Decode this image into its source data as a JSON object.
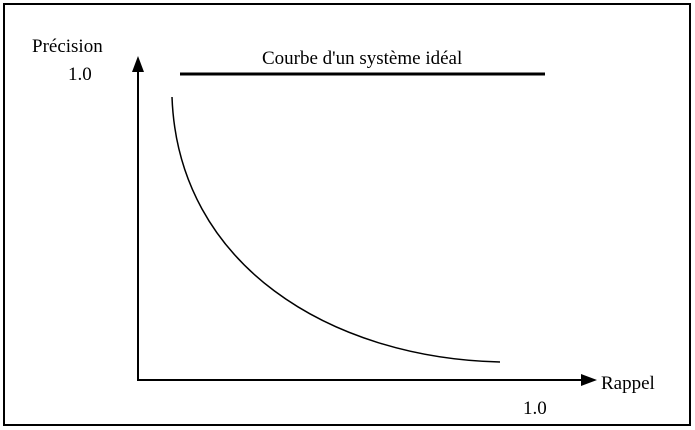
{
  "y_axis": {
    "label": "Précision",
    "tick": "1.0"
  },
  "x_axis": {
    "label": "Rappel",
    "tick": "1.0"
  },
  "ideal_curve_label": "Courbe d'un système idéal"
}
